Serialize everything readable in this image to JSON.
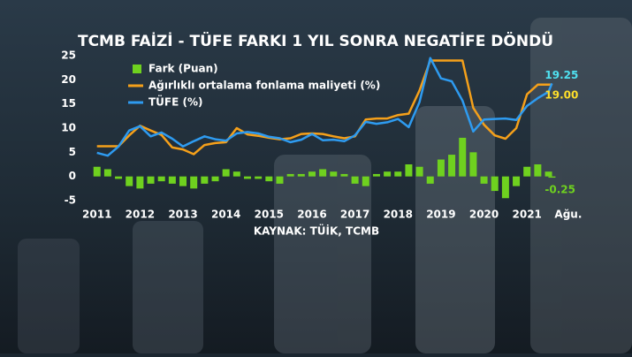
{
  "chart_data": {
    "type": "line",
    "title": "TCMB FAİZİ - TÜFE FARKI 1 YIL SONRA NEGATİFE DÖNDÜ",
    "source": "KAYNAK: TÜİK, TCMB",
    "x": [
      2011,
      2011.25,
      2011.5,
      2011.75,
      2012,
      2012.25,
      2012.5,
      2012.75,
      2013,
      2013.25,
      2013.5,
      2013.75,
      2014,
      2014.25,
      2014.5,
      2014.75,
      2015,
      2015.25,
      2015.5,
      2015.75,
      2016,
      2016.25,
      2016.5,
      2016.75,
      2017,
      2017.25,
      2017.5,
      2017.75,
      2018,
      2018.25,
      2018.5,
      2018.75,
      2019,
      2019.25,
      2019.5,
      2019.75,
      2020,
      2020.25,
      2020.5,
      2020.75,
      2021,
      2021.25,
      2021.5,
      2021.58
    ],
    "series": [
      {
        "name": "Fark (Puan)",
        "kind": "bar",
        "color": "#6fd11f",
        "values": [
          2.0,
          1.5,
          -0.5,
          -2.0,
          -2.5,
          -1.5,
          -1.0,
          -1.5,
          -2.0,
          -2.5,
          -1.5,
          -1.0,
          1.5,
          1.0,
          -0.5,
          -0.5,
          -1.0,
          -1.5,
          0.5,
          0.5,
          1.0,
          1.5,
          1.0,
          0.5,
          -1.5,
          -2.0,
          0.5,
          1.0,
          1.0,
          2.5,
          2.0,
          -1.5,
          3.5,
          4.5,
          8.0,
          5.0,
          -1.5,
          -3.0,
          -4.5,
          -2.0,
          2.0,
          2.5,
          1.0,
          -0.25
        ],
        "value_labels": [
          null,
          null,
          null,
          null,
          null,
          null,
          null,
          null,
          null,
          null,
          null,
          null,
          null,
          null,
          null,
          null,
          null,
          null,
          null,
          null,
          null,
          null,
          null,
          null,
          null,
          null,
          null,
          null,
          null,
          null,
          null,
          null,
          null,
          null,
          null,
          null,
          null,
          null,
          null,
          null,
          null,
          null,
          null,
          "-0.25"
        ]
      },
      {
        "name": "Ağırlıklı ortalama fonlama maliyeti (%)",
        "kind": "line",
        "color": "#f5a01a",
        "values": [
          6.25,
          6.25,
          6.25,
          8.5,
          10.5,
          9.5,
          8.6,
          6.0,
          5.6,
          4.6,
          6.5,
          6.9,
          7.1,
          10.0,
          8.7,
          8.4,
          8.0,
          7.7,
          7.9,
          8.8,
          8.9,
          8.8,
          8.3,
          7.9,
          8.3,
          11.8,
          12.0,
          12.0,
          12.7,
          13.0,
          17.8,
          24.0,
          24.0,
          24.0,
          24.0,
          14.2,
          10.7,
          8.5,
          7.8,
          10.0,
          17.0,
          19.0,
          19.0,
          19.0
        ],
        "value_labels": [
          null,
          null,
          null,
          null,
          null,
          null,
          null,
          null,
          null,
          null,
          null,
          null,
          null,
          null,
          null,
          null,
          null,
          null,
          null,
          null,
          null,
          null,
          null,
          null,
          null,
          null,
          null,
          null,
          null,
          null,
          null,
          null,
          null,
          null,
          null,
          null,
          null,
          null,
          null,
          null,
          null,
          null,
          null,
          "19.00"
        ]
      },
      {
        "name": "TÜFE (%)",
        "kind": "line",
        "color": "#2e9bf0",
        "values": [
          4.9,
          4.3,
          6.2,
          9.5,
          10.4,
          8.3,
          9.1,
          7.8,
          6.2,
          7.3,
          8.3,
          7.7,
          7.4,
          8.9,
          9.2,
          8.9,
          8.2,
          7.9,
          7.1,
          7.6,
          8.8,
          7.5,
          7.6,
          7.3,
          8.5,
          11.3,
          10.9,
          11.2,
          11.9,
          10.2,
          15.4,
          24.5,
          20.3,
          19.7,
          15.7,
          9.3,
          11.8,
          11.9,
          12.0,
          11.7,
          14.6,
          16.2,
          17.5,
          19.25
        ],
        "value_labels": [
          null,
          null,
          null,
          null,
          null,
          null,
          null,
          null,
          null,
          null,
          null,
          null,
          null,
          null,
          null,
          null,
          null,
          null,
          null,
          null,
          null,
          null,
          null,
          null,
          null,
          null,
          null,
          null,
          null,
          null,
          null,
          null,
          null,
          null,
          null,
          null,
          null,
          null,
          null,
          null,
          null,
          null,
          null,
          "19.25"
        ]
      }
    ],
    "xlim": [
      2010.8,
      2021.9
    ],
    "xticks": [
      2011,
      2012,
      2013,
      2014,
      2015,
      2016,
      2017,
      2018,
      2019,
      2020,
      2021,
      {
        "value": 2021.58,
        "label": "Ağu."
      }
    ],
    "ylim": [
      -5,
      25
    ],
    "yticks": [
      -5,
      0,
      5,
      10,
      15,
      20,
      25
    ]
  }
}
